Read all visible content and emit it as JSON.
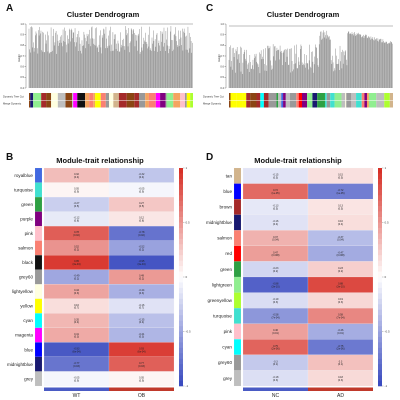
{
  "panels": {
    "A": {
      "letter": "A",
      "title": "Cluster Dendrogram",
      "ylabel": "Height",
      "track1": "Dynamic Tree Cut",
      "track2": "Merge Dynamic",
      "yticks": [
        "1.0",
        "0.9",
        "0.8",
        "0.7",
        "0.6",
        "0.5",
        "0.4"
      ]
    },
    "C": {
      "letter": "C",
      "title": "Cluster Dendrogram",
      "ylabel": "Height",
      "track1": "Dynamic Tree Cut",
      "track2": "Merge Dynamic",
      "yticks": [
        "1.0",
        "0.9",
        "0.8",
        "0.7",
        "0.6",
        "0.5",
        "0.4"
      ]
    },
    "B": {
      "letter": "B",
      "title": "Module-trait relationship",
      "xlabels": [
        "WT",
        "OB"
      ]
    },
    "D": {
      "letter": "D",
      "title": "Module-trait relationship",
      "xlabels": [
        "NC",
        "AD"
      ]
    }
  },
  "colors": {
    "neg": "#3b4cc0",
    "mid": "#ffffff",
    "pos": "#d73027"
  },
  "chart_data": [
    {
      "type": "heatmap",
      "panel": "B",
      "title": "Module-trait relationship",
      "categories": [
        "WT",
        "OB"
      ],
      "rows": [
        "royalblue",
        "turquoise",
        "green",
        "purple",
        "pink",
        "salmon",
        "black",
        "grey60",
        "lightyellow",
        "yellow",
        "cyan",
        "magenta",
        "blue",
        "midnightblue",
        "grey"
      ],
      "row_colors": [
        "#4169e1",
        "#40e0d0",
        "#2ea043",
        "#800080",
        "#ffc0cb",
        "#fa8072",
        "#111111",
        "#999999",
        "#ffffe0",
        "#ffff00",
        "#00ffff",
        "#ff00ff",
        "#0000ff",
        "#191970",
        "#bebebe"
      ],
      "values": [
        [
          0.32,
          -0.32
        ],
        [
          0.05,
          -0.05
        ],
        [
          -0.27,
          0.27
        ],
        [
          -0.12,
          0.12
        ],
        [
          0.78,
          -0.78
        ],
        [
          0.52,
          -0.52
        ],
        [
          0.95,
          -0.95
        ],
        [
          -0.49,
          0.49
        ],
        [
          0.44,
          -0.44
        ],
        [
          0.16,
          -0.16
        ],
        [
          0.35,
          -0.35
        ],
        [
          0.41,
          -0.41
        ],
        [
          -0.93,
          0.93
        ],
        [
          -0.77,
          0.77
        ],
        [
          -0.05,
          0.05
        ]
      ],
      "labels": [
        [
          "0.32\n(0.4)",
          "-0.32\n(0.4)"
        ],
        [
          "0.05\n(0.9)",
          "-0.05\n(0.9)"
        ],
        [
          "-0.27\n(0.5)",
          "0.27\n(0.5)"
        ],
        [
          "-0.12\n(0.8)",
          "0.12\n(0.8)"
        ],
        [
          "0.78\n(0.02)",
          "-0.78\n(0.02)"
        ],
        [
          "0.52\n(0.2)",
          "-0.52\n(0.2)"
        ],
        [
          "0.95\n(3e-04)",
          "-0.95\n(3e-04)"
        ],
        [
          "-0.49\n(0.2)",
          "0.49\n(0.2)"
        ],
        [
          "0.44\n(0.3)",
          "-0.44\n(0.3)"
        ],
        [
          "0.16\n(0.7)",
          "-0.16\n(0.7)"
        ],
        [
          "0.35\n(0.4)",
          "-0.35\n(0.4)"
        ],
        [
          "0.41\n(0.3)",
          "-0.41\n(0.3)"
        ],
        [
          "-0.93\n(6e-04)",
          "0.93\n(6e-04)"
        ],
        [
          "-0.77\n(0.03)",
          "0.77\n(0.03)"
        ],
        [
          "-0.05\n(0.9)",
          "0.05\n(0.9)"
        ]
      ],
      "colorbar": {
        "range": [
          -1,
          1
        ],
        "ticks": [
          "1",
          "0.5",
          "0",
          "-0.5",
          "-1"
        ]
      }
    },
    {
      "type": "heatmap",
      "panel": "D",
      "title": "Module-trait relationship",
      "categories": [
        "NC",
        "AD"
      ],
      "rows": [
        "tan",
        "blue",
        "brown",
        "midnightblue",
        "salmon",
        "red",
        "green",
        "lightgreen",
        "greenyellow",
        "turquoise",
        "pink",
        "cyan",
        "grey60",
        "grey"
      ],
      "row_colors": [
        "#d2b48c",
        "#0000ff",
        "#a52a2a",
        "#191970",
        "#fa8072",
        "#ff0000",
        "#2ea043",
        "#90ee90",
        "#adff2f",
        "#40e0d0",
        "#ffc0cb",
        "#00ffff",
        "#999999",
        "#bebebe"
      ],
      "values": [
        [
          -0.15,
          0.15
        ],
        [
          0.72,
          -0.72
        ],
        [
          -0.13,
          0.13
        ],
        [
          -0.16,
          0.16
        ],
        [
          0.37,
          -0.37
        ],
        [
          0.47,
          -0.47
        ],
        [
          -0.23,
          0.23
        ],
        [
          -0.88,
          0.88
        ],
        [
          -0.19,
          0.19
        ],
        [
          -0.58,
          0.58
        ],
        [
          0.46,
          -0.46
        ],
        [
          0.75,
          -0.75
        ],
        [
          -0.3,
          0.3
        ],
        [
          -0.18,
          0.18
        ]
      ],
      "labels": [
        [
          "-0.15\n(0.5)",
          "0.15\n(0.5)"
        ],
        [
          "0.72\n(1e-05)",
          "-0.72\n(1e-05)"
        ],
        [
          "-0.13\n(0.5)",
          "0.13\n(0.5)"
        ],
        [
          "-0.16\n(0.4)",
          "0.16\n(0.4)"
        ],
        [
          "0.37\n(0.04)",
          "-0.37\n(0.04)"
        ],
        [
          "0.47\n(0.008)",
          "-0.47\n(0.008)"
        ],
        [
          "-0.23\n(0.2)",
          "0.23\n(0.2)"
        ],
        [
          "-0.88\n(3e-10)",
          "0.88\n(3e-10)"
        ],
        [
          "-0.19\n(0.3)",
          "0.19\n(0.3)"
        ],
        [
          "-0.58\n(7e-04)",
          "0.58\n(7e-04)"
        ],
        [
          "0.46\n(0.01)",
          "-0.46\n(0.01)"
        ],
        [
          "0.75\n(2e-06)",
          "-0.75\n(2e-06)"
        ],
        [
          "-0.3\n(0.1)",
          "0.3\n(0.1)"
        ],
        [
          "-0.18\n(0.3)",
          "0.18\n(0.3)"
        ]
      ],
      "colorbar": {
        "range": [
          -1,
          1
        ],
        "ticks": [
          "1",
          "0.5",
          "0",
          "-0.5",
          "-1"
        ]
      }
    }
  ]
}
